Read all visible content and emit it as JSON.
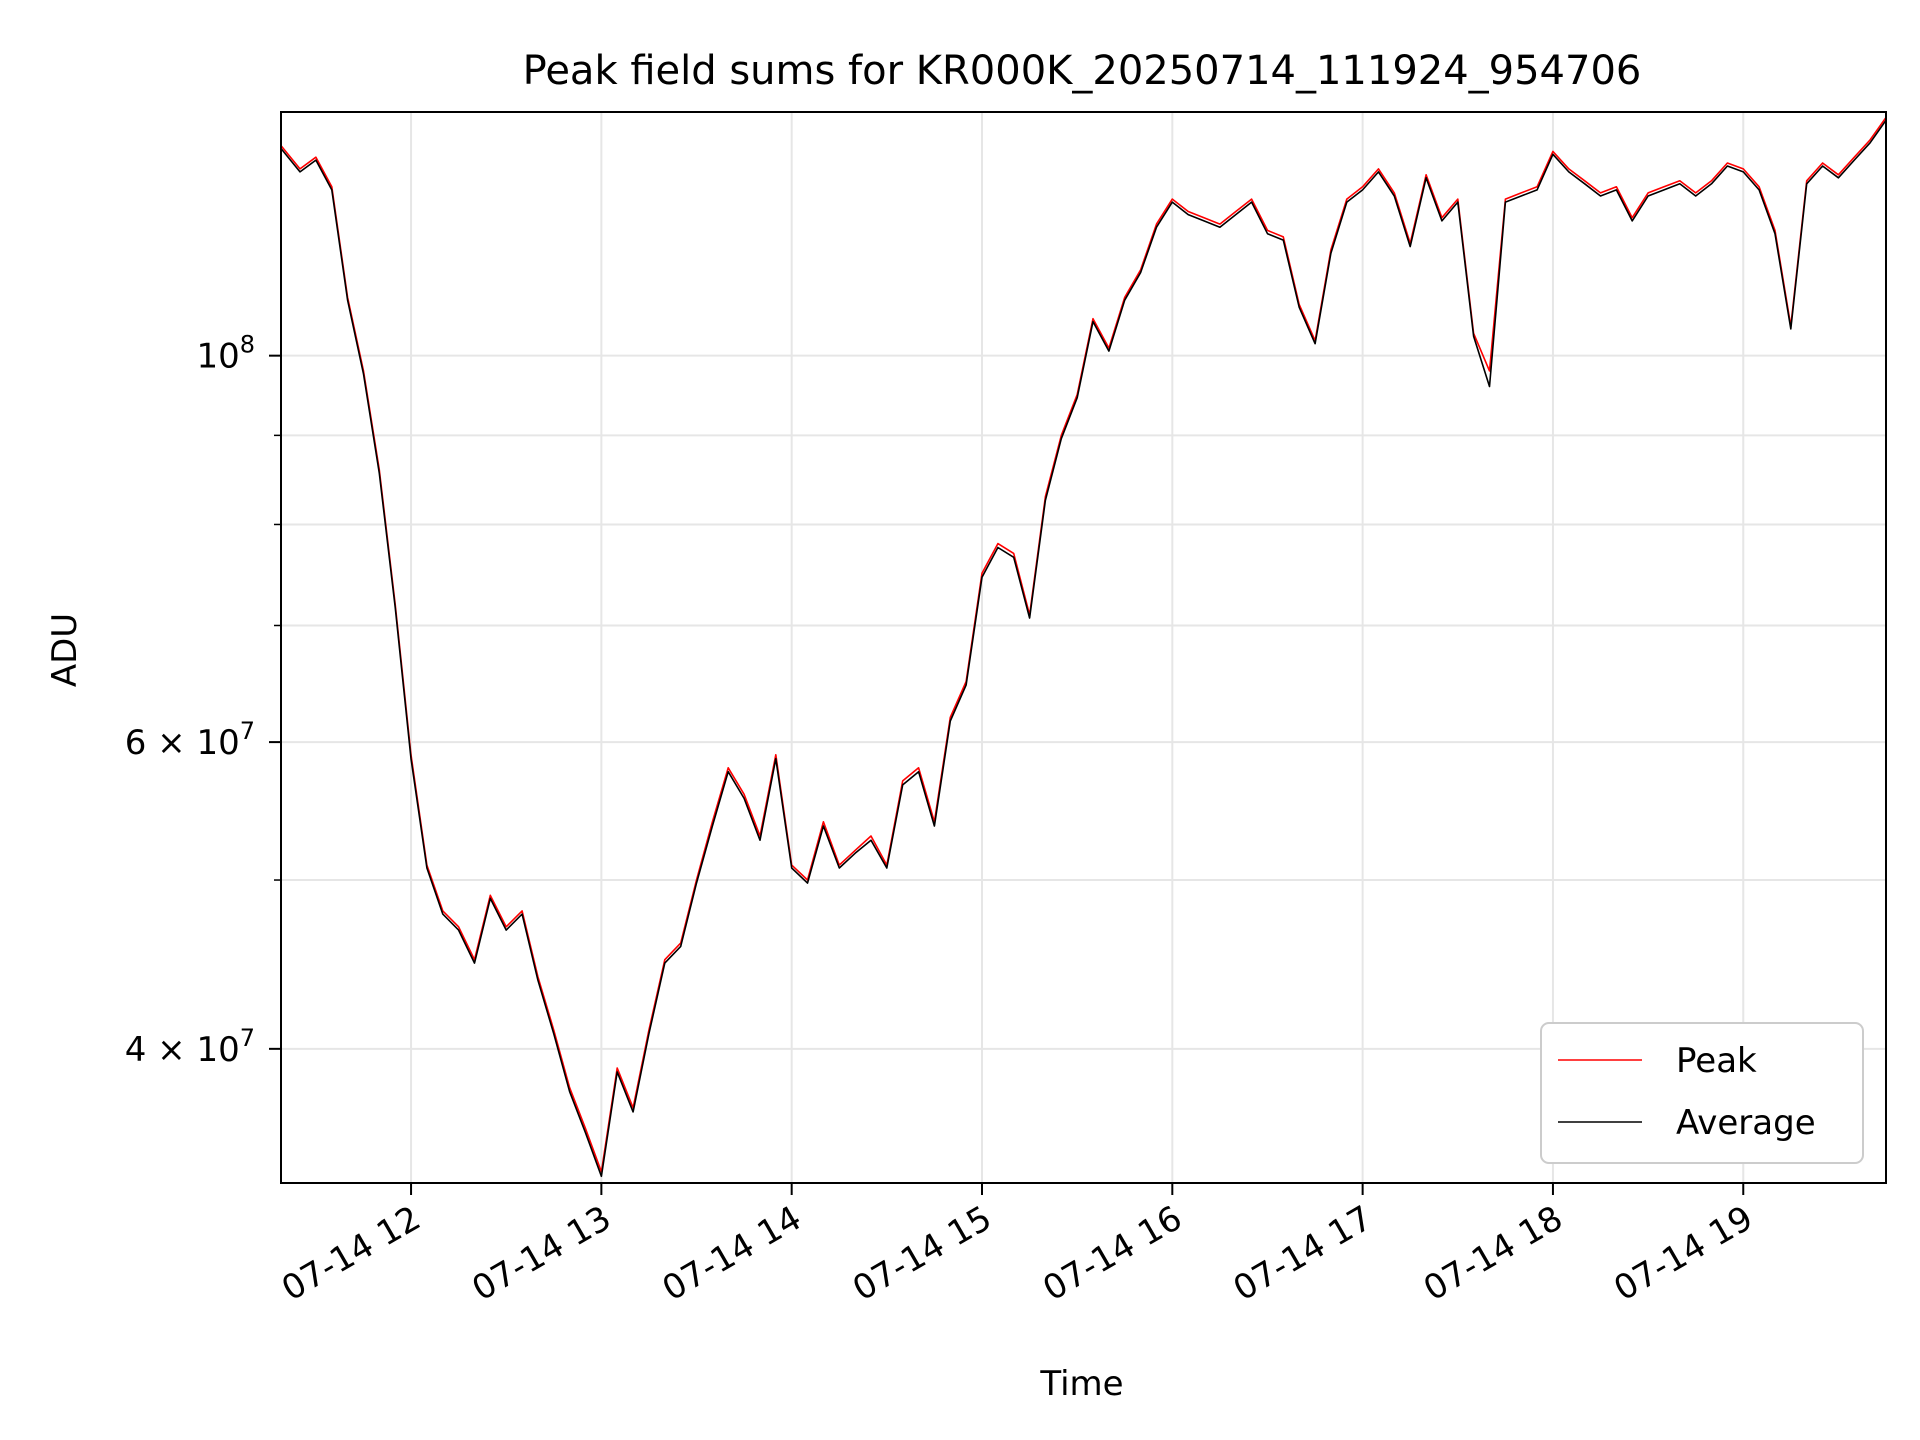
{
  "chart_data": {
    "type": "line",
    "title": "Peak field sums for KR000K_20250714_111924_954706",
    "xlabel": "Time",
    "ylabel": "ADU",
    "y_scale": "log",
    "ylim": [
      33500000,
      138000000
    ],
    "xlim": [
      "07-14 11:19",
      "07-14 19:45"
    ],
    "x_ticks": [
      "07-14 12",
      "07-14 13",
      "07-14 14",
      "07-14 15",
      "07-14 16",
      "07-14 17",
      "07-14 18",
      "07-14 19"
    ],
    "y_ticks": [
      {
        "label_base": "10",
        "label_exp": "8",
        "value": 100000000
      },
      {
        "label_base": "6 × 10",
        "label_exp": "7",
        "value": 60000000
      },
      {
        "label_base": "4 × 10",
        "label_exp": "7",
        "value": 40000000
      }
    ],
    "y_minor_ticks": [
      50000000,
      70000000,
      80000000,
      90000000
    ],
    "grid": true,
    "legend_position": "lower-right",
    "x_times": [
      "11:19",
      "11:25",
      "11:30",
      "11:35",
      "11:40",
      "11:45",
      "11:50",
      "11:55",
      "12:00",
      "12:05",
      "12:10",
      "12:15",
      "12:20",
      "12:25",
      "12:30",
      "12:35",
      "12:40",
      "12:45",
      "12:50",
      "12:55",
      "13:00",
      "13:05",
      "13:10",
      "13:15",
      "13:20",
      "13:25",
      "13:30",
      "13:35",
      "13:40",
      "13:45",
      "13:50",
      "13:55",
      "14:00",
      "14:05",
      "14:10",
      "14:15",
      "14:20",
      "14:25",
      "14:30",
      "14:35",
      "14:40",
      "14:45",
      "14:50",
      "14:55",
      "15:00",
      "15:05",
      "15:10",
      "15:15",
      "15:20",
      "15:25",
      "15:30",
      "15:35",
      "15:40",
      "15:45",
      "15:50",
      "15:55",
      "16:00",
      "16:05",
      "16:10",
      "16:15",
      "16:20",
      "16:25",
      "16:30",
      "16:35",
      "16:40",
      "16:45",
      "16:50",
      "16:55",
      "17:00",
      "17:05",
      "17:10",
      "17:15",
      "17:20",
      "17:25",
      "17:30",
      "17:35",
      "17:40",
      "17:45",
      "17:50",
      "17:55",
      "18:00",
      "18:05",
      "18:10",
      "18:15",
      "18:20",
      "18:25",
      "18:30",
      "18:35",
      "18:40",
      "18:45",
      "18:50",
      "18:55",
      "19:00",
      "19:05",
      "19:10",
      "19:15",
      "19:20",
      "19:25",
      "19:30",
      "19:35",
      "19:40",
      "19:45"
    ],
    "series": [
      {
        "name": "Peak",
        "color": "#ff0000",
        "values": [
          132000000,
          128000000,
          130000000,
          125000000,
          108000000,
          98000000,
          86000000,
          72000000,
          59000000,
          51000000,
          48000000,
          47000000,
          45000000,
          49000000,
          47000000,
          48000000,
          44000000,
          41000000,
          38000000,
          36000000,
          34000000,
          39000000,
          37000000,
          41000000,
          45000000,
          46000000,
          50000000,
          54000000,
          58000000,
          56000000,
          53000000,
          59000000,
          51000000,
          50000000,
          54000000,
          51000000,
          52000000,
          53000000,
          51000000,
          57000000,
          58000000,
          54000000,
          62000000,
          65000000,
          75000000,
          78000000,
          77000000,
          71000000,
          83000000,
          90000000,
          95000000,
          105000000,
          101000000,
          108000000,
          112000000,
          119000000,
          123000000,
          121000000,
          120000000,
          119000000,
          121000000,
          123000000,
          118000000,
          117000000,
          107000000,
          102000000,
          115000000,
          123000000,
          125000000,
          128000000,
          124000000,
          116000000,
          127000000,
          120000000,
          123000000,
          103000000,
          98000000,
          123000000,
          124000000,
          125000000,
          131000000,
          128000000,
          126000000,
          124000000,
          125000000,
          120000000,
          124000000,
          125000000,
          126000000,
          124000000,
          126000000,
          129000000,
          128000000,
          125000000,
          118000000,
          104000000,
          126000000,
          129000000,
          127000000,
          130000000,
          133000000,
          137000000
        ]
      },
      {
        "name": "Average",
        "color": "#000000",
        "values": [
          131500000,
          127500000,
          129500000,
          124500000,
          107600000,
          97600000,
          85600000,
          71700000,
          58700000,
          50800000,
          47800000,
          46800000,
          44800000,
          48800000,
          46800000,
          47800000,
          43800000,
          40800000,
          37800000,
          35800000,
          33800000,
          38800000,
          36800000,
          40800000,
          44800000,
          45800000,
          49800000,
          53700000,
          57700000,
          55700000,
          52700000,
          58700000,
          50800000,
          49800000,
          53700000,
          50800000,
          51800000,
          52700000,
          50800000,
          56700000,
          57700000,
          53700000,
          61700000,
          64700000,
          74600000,
          77600000,
          76600000,
          70700000,
          82600000,
          89600000,
          94600000,
          104600000,
          100600000,
          107600000,
          111600000,
          118500000,
          122500000,
          120500000,
          119500000,
          118500000,
          120500000,
          122500000,
          117500000,
          116500000,
          106600000,
          101600000,
          114500000,
          122500000,
          124500000,
          127500000,
          123500000,
          115500000,
          126500000,
          119500000,
          122500000,
          102600000,
          96000000,
          122500000,
          123500000,
          124500000,
          130500000,
          127500000,
          125500000,
          123500000,
          124500000,
          119500000,
          123500000,
          124500000,
          125500000,
          123500000,
          125500000,
          128500000,
          127500000,
          124500000,
          117500000,
          103600000,
          125500000,
          128500000,
          126500000,
          129500000,
          132500000,
          136500000
        ]
      }
    ]
  }
}
